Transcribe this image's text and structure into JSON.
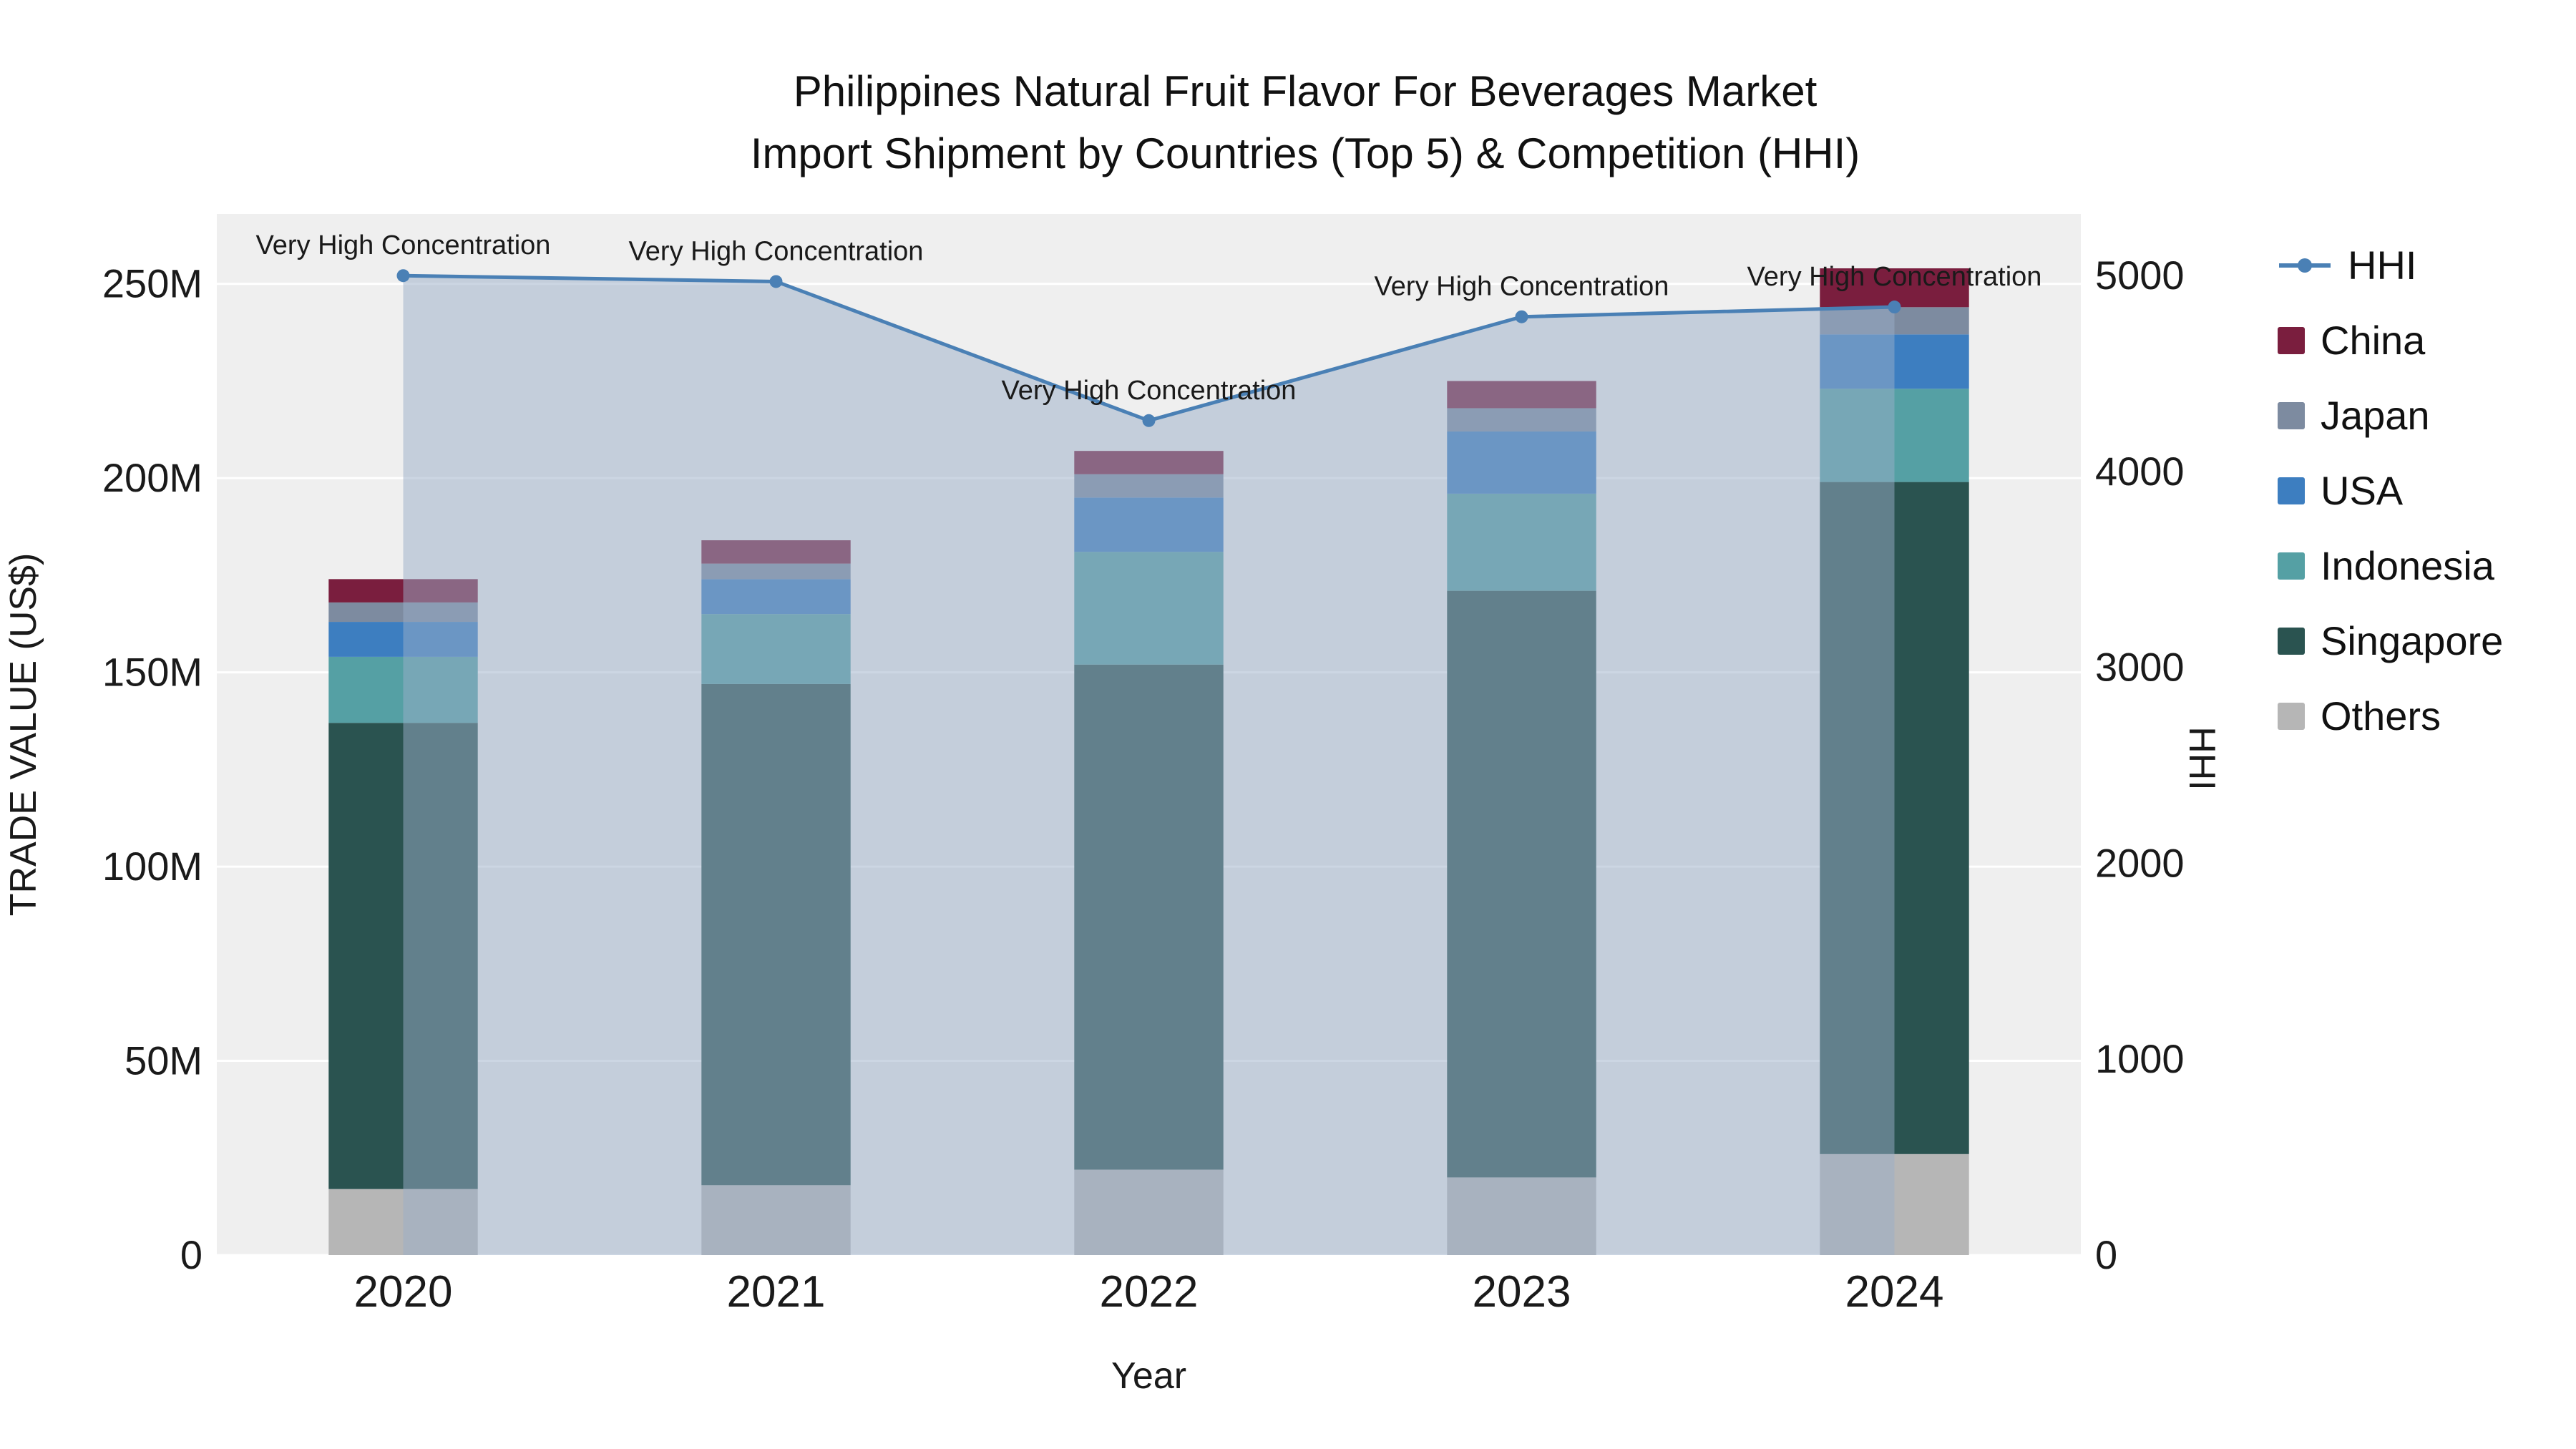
{
  "chart_data": {
    "type": "bar+line",
    "title": "Philippines Natural Fruit Flavor For Beverages Market",
    "subtitle": "Import Shipment by Countries (Top 5) & Competition (HHI)",
    "xlabel": "Year",
    "ylabel": "TRADE VALUE (US$)",
    "y2label": "HHI",
    "categories": [
      "2020",
      "2021",
      "2022",
      "2023",
      "2024"
    ],
    "bar_unit": "millions US$",
    "bar_series": [
      {
        "name": "Others",
        "color": "#b6b6b6",
        "values": [
          17,
          18,
          22,
          20,
          26
        ]
      },
      {
        "name": "Singapore",
        "color": "#2a5350",
        "values": [
          120,
          129,
          130,
          151,
          173
        ]
      },
      {
        "name": "Indonesia",
        "color": "#55a0a4",
        "values": [
          17,
          18,
          29,
          25,
          24
        ]
      },
      {
        "name": "USA",
        "color": "#3d7ec0",
        "values": [
          9,
          9,
          14,
          16,
          14
        ]
      },
      {
        "name": "Japan",
        "color": "#7d8ba0",
        "values": [
          5,
          4,
          6,
          6,
          7
        ]
      },
      {
        "name": "China",
        "color": "#7a1e3e",
        "values": [
          6,
          6,
          6,
          7,
          10
        ]
      }
    ],
    "line_series": {
      "name": "HHI",
      "color": "#4a80b5",
      "area_fill": "rgba(153,173,199,0.5)",
      "values": [
        5000,
        4970,
        4260,
        4790,
        4840
      ]
    },
    "annotations": [
      "Very High Concentration",
      "Very High Concentration",
      "Very High Concentration",
      "Very High Concentration",
      "Very High Concentration"
    ],
    "y_axis": {
      "max": 268,
      "tick_values": [
        0,
        50,
        100,
        150,
        200,
        250
      ],
      "tick_labels": [
        "0",
        "50M",
        "100M",
        "150M",
        "200M",
        "250M"
      ]
    },
    "y2_axis": {
      "max": 5315,
      "tick_values": [
        0,
        1000,
        2000,
        3000,
        4000,
        5000
      ],
      "tick_labels": [
        "0",
        "1000",
        "2000",
        "3000",
        "4000",
        "5000"
      ]
    },
    "legend": [
      {
        "label": "HHI",
        "type": "line",
        "color": "#4a80b5"
      },
      {
        "label": "China",
        "type": "swatch",
        "color": "#7a1e3e"
      },
      {
        "label": "Japan",
        "type": "swatch",
        "color": "#7d8ba0"
      },
      {
        "label": "USA",
        "type": "swatch",
        "color": "#3d7ec0"
      },
      {
        "label": "Indonesia",
        "type": "swatch",
        "color": "#55a0a4"
      },
      {
        "label": "Singapore",
        "type": "swatch",
        "color": "#2a5350"
      },
      {
        "label": "Others",
        "type": "swatch",
        "color": "#b6b6b6"
      }
    ],
    "plot_bg": "#efefef",
    "grid_color": "#ffffff"
  }
}
